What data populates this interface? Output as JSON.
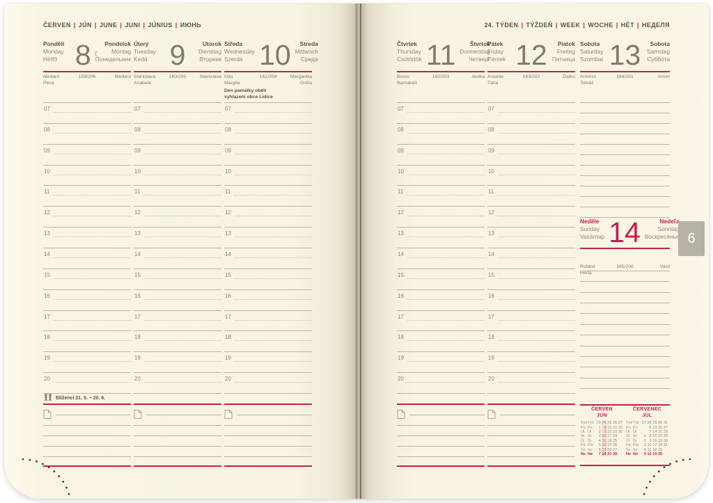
{
  "colors": {
    "accent": "#c31e4f",
    "paper": "#f8f3e2",
    "ink": "#57544b",
    "gray": "#8c887b",
    "number_gray": "#7d7a6f",
    "rule": "#bdb7a5",
    "tab_gray": "#b6b2a6",
    "week_highlight": "#f4dcd4"
  },
  "left_page": {
    "month_header": [
      "ČERVEN",
      "JÚN",
      "JUNE",
      "JUNI",
      "JÚNIUS",
      "ИЮНЬ"
    ]
  },
  "right_page": {
    "week_header": [
      "24. TÝDEN",
      "TÝŽDEŇ",
      "WEEK",
      "WOCHE",
      "HÉT",
      "НЕДЕЛЯ"
    ],
    "page_tab": "6"
  },
  "hours": [
    "07",
    "08",
    "09",
    "10",
    "11",
    "12",
    "13",
    "14",
    "15",
    "16",
    "17",
    "18",
    "19",
    "20"
  ],
  "zodiac": {
    "icon": "gemini",
    "label": "Blíženci 21. 5. – 20. 6."
  },
  "days": [
    {
      "key": "monday",
      "names_left": [
        "Pondělí",
        "Monday",
        "Hétfő"
      ],
      "number": "8",
      "moon": "☾",
      "names_right": [
        "Pondelok",
        "Montag",
        "Понедельник"
      ],
      "nameday_left": [
        "Medard",
        "Pěva"
      ],
      "day_of_year": "159/206",
      "nameday_right": [
        "Medard"
      ]
    },
    {
      "key": "tuesday",
      "names_left": [
        "Úterý",
        "Tuesday",
        "Kedd"
      ],
      "number": "9",
      "names_right": [
        "Utorok",
        "Dienstag",
        "Вторник"
      ],
      "nameday_left": [
        "Stanislava",
        "Anabela"
      ],
      "day_of_year": "160/205",
      "nameday_right": [
        "Stanislava"
      ]
    },
    {
      "key": "wednesday",
      "names_left": [
        "Středa",
        "Wednesday",
        "Szerda"
      ],
      "number": "10",
      "names_right": [
        "Streda",
        "Mittwoch",
        "Среда"
      ],
      "nameday_left": [
        "Gita",
        "Margita"
      ],
      "day_of_year": "161/204",
      "nameday_right": [
        "Margaréta",
        "Gréta"
      ],
      "note": [
        "Den památky obětí",
        "vyhlazení obce Lidice"
      ]
    },
    {
      "key": "thursday",
      "names_left": [
        "Čtvrtek",
        "Thursday",
        "Csütörtök"
      ],
      "number": "11",
      "names_right": [
        "Štvrtok",
        "Donnerstag",
        "Четверг"
      ],
      "nameday_left": [
        "Bruno",
        "Barnabáš"
      ],
      "day_of_year": "162/203",
      "nameday_right": [
        "Jesika"
      ]
    },
    {
      "key": "friday",
      "names_left": [
        "Pátek",
        "Friday",
        "Péntek"
      ],
      "number": "12",
      "names_right": [
        "Piatok",
        "Freitag",
        "Пятница"
      ],
      "nameday_left": [
        "Antonie",
        "Táňa"
      ],
      "day_of_year": "163/202",
      "nameday_right": [
        "Zlatko"
      ]
    }
  ],
  "saturday": {
    "key": "saturday",
    "names_left": [
      "Sobota",
      "Saturday",
      "Szombat"
    ],
    "number": "13",
    "names_right": [
      "Sobota",
      "Samstag",
      "Суббота"
    ],
    "nameday_left": [
      "Antonín",
      "Tobiáš"
    ],
    "day_of_year": "164/201",
    "nameday_right": [
      "Anton"
    ]
  },
  "sunday": {
    "key": "sunday",
    "names_left": [
      "Neděle",
      "Sunday",
      "Vasárnap"
    ],
    "number": "14",
    "names_right": [
      "Nedeľa",
      "Sonntag",
      "Воскресенье"
    ],
    "nameday_left": [
      "Roland",
      "Herta"
    ],
    "day_of_year": "165/200",
    "nameday_right": [
      "Vasil"
    ]
  },
  "mini_calendars": [
    {
      "title": "ČERVEN",
      "subtitle": "JÚN",
      "week_labels": [
        "Týd",
        "Týž"
      ],
      "weeks": [
        "23",
        "24",
        "25",
        "26",
        "27"
      ],
      "highlight_week": "24",
      "rows": [
        {
          "labels": [
            "Po",
            "Po"
          ],
          "values": [
            "1",
            "8",
            "15",
            "22",
            "29"
          ],
          "sunday": false
        },
        {
          "labels": [
            "Út",
            "Ut"
          ],
          "values": [
            "2",
            "9",
            "16",
            "23",
            "30"
          ],
          "sunday": false
        },
        {
          "labels": [
            "St",
            "St"
          ],
          "values": [
            "3",
            "10",
            "17",
            "24",
            ""
          ],
          "sunday": false
        },
        {
          "labels": [
            "Čt",
            "Št"
          ],
          "values": [
            "4",
            "11",
            "18",
            "25",
            ""
          ],
          "sunday": false
        },
        {
          "labels": [
            "Pá",
            "Pia"
          ],
          "values": [
            "5",
            "12",
            "19",
            "26",
            ""
          ],
          "sunday": false
        },
        {
          "labels": [
            "So",
            "So"
          ],
          "values": [
            "6",
            "13",
            "20",
            "27",
            ""
          ],
          "sunday": false
        },
        {
          "labels": [
            "Ne",
            "Ne"
          ],
          "values": [
            "7",
            "14",
            "21",
            "28",
            ""
          ],
          "sunday": true
        }
      ]
    },
    {
      "title": "ČERVENEC",
      "subtitle": "JÚL",
      "week_labels": [
        "Týd",
        "Týž"
      ],
      "weeks": [
        "27",
        "28",
        "29",
        "30",
        "31"
      ],
      "highlight_week": "",
      "rows": [
        {
          "labels": [
            "Po",
            "Po"
          ],
          "values": [
            "",
            "6",
            "13",
            "20",
            "27"
          ],
          "sunday": false
        },
        {
          "labels": [
            "Út",
            "Ut"
          ],
          "values": [
            "",
            "7",
            "14",
            "21",
            "28"
          ],
          "sunday": false
        },
        {
          "labels": [
            "St",
            "St"
          ],
          "values": [
            "1",
            "8",
            "15",
            "22",
            "29"
          ],
          "sunday": false
        },
        {
          "labels": [
            "Čt",
            "Št"
          ],
          "values": [
            "2",
            "9",
            "16",
            "23",
            "30"
          ],
          "sunday": false
        },
        {
          "labels": [
            "Pá",
            "Pia"
          ],
          "values": [
            "3",
            "10",
            "17",
            "24",
            "31"
          ],
          "sunday": false
        },
        {
          "labels": [
            "So",
            "So"
          ],
          "values": [
            "4",
            "11",
            "18",
            "25",
            ""
          ],
          "sunday": false
        },
        {
          "labels": [
            "Ne",
            "Ne"
          ],
          "values": [
            "5",
            "12",
            "19",
            "26",
            ""
          ],
          "sunday": true
        }
      ]
    }
  ]
}
